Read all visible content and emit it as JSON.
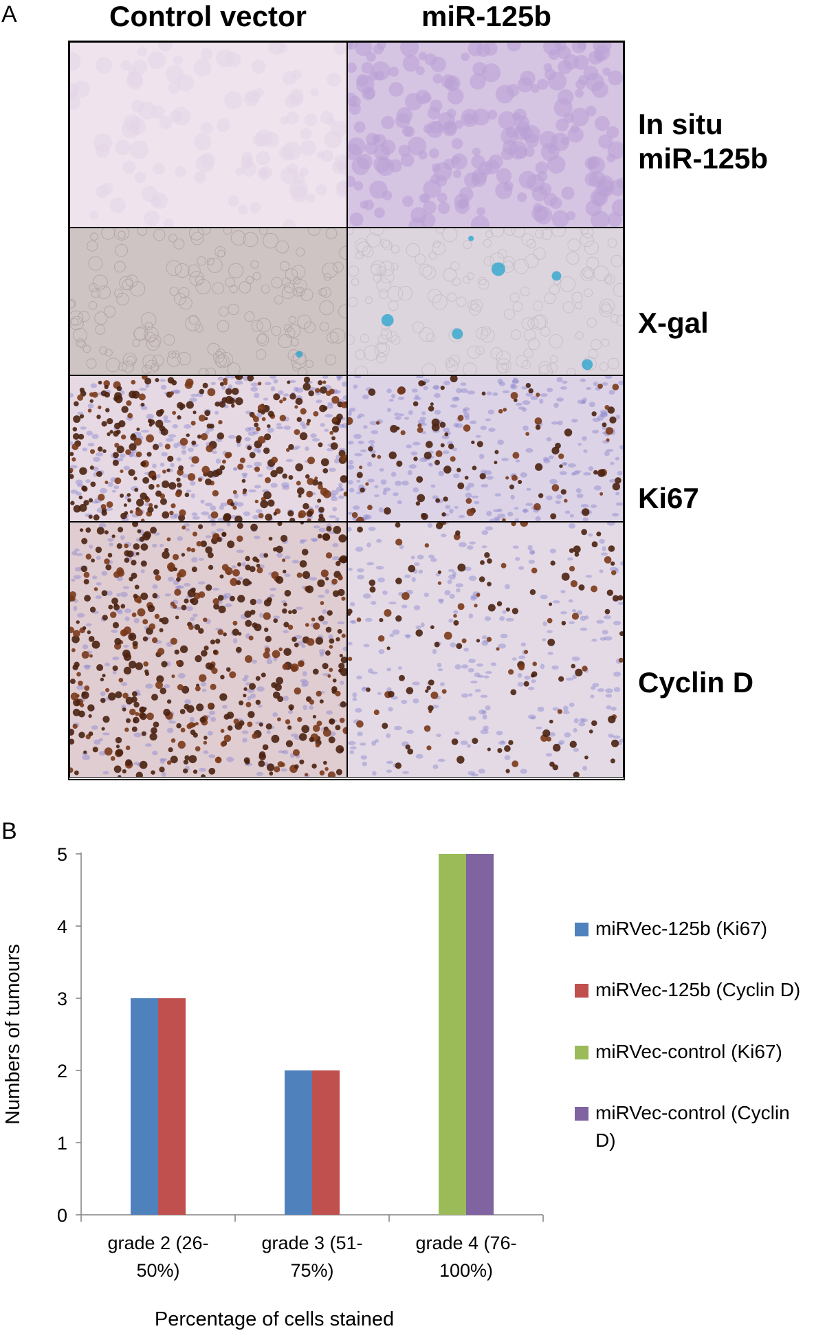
{
  "panel_a": {
    "letter": "A",
    "columns": [
      "Control vector",
      "miR-125b"
    ],
    "rows": [
      {
        "label_lines": [
          "In situ",
          "miR-125b"
        ],
        "stain": "in-situ"
      },
      {
        "label_lines": [
          "X-gal"
        ],
        "stain": "x-gal"
      },
      {
        "label_lines": [
          "Ki67"
        ],
        "stain": "ki67"
      },
      {
        "label_lines": [
          "Cyclin D"
        ],
        "stain": "cyclin-d"
      }
    ]
  },
  "panel_b": {
    "letter": "B"
  },
  "chart_data": {
    "type": "bar",
    "categories": [
      [
        "grade 2 (26-",
        "50%)"
      ],
      [
        "grade 3 (51-",
        "75%)"
      ],
      [
        "grade 4 (76-",
        "100%)"
      ]
    ],
    "series": [
      {
        "name": "miRVec-125b (Ki67)",
        "values": [
          3,
          2,
          0
        ],
        "color": "#4f81bd"
      },
      {
        "name": "miRVec-125b (Cyclin D)",
        "values": [
          3,
          2,
          0
        ],
        "color": "#c0504d"
      },
      {
        "name": "miRVec-control (Ki67)",
        "values": [
          0,
          0,
          5
        ],
        "color": "#9bbb59"
      },
      {
        "name": "miRVec-control (Cyclin D)",
        "values": [
          0,
          0,
          5
        ],
        "color": "#8064a2"
      }
    ],
    "legend_lines": [
      [
        "miRVec-125b (Ki67)"
      ],
      [
        "miRVec-125b (Cyclin D)"
      ],
      [
        "miRVec-control (Ki67)"
      ],
      [
        "miRVec-control (Cyclin",
        "D)"
      ]
    ],
    "xlabel": "Percentage of cells stained",
    "ylabel": "Numbers of tumours",
    "ylim": [
      0,
      5
    ],
    "yticks": [
      0,
      1,
      2,
      3,
      4,
      5
    ],
    "grid": false,
    "legend_position": "right"
  }
}
